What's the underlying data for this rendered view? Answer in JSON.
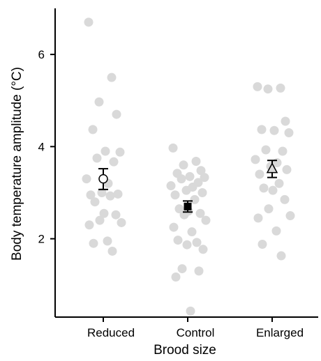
{
  "chart_data": {
    "type": "scatter",
    "xlabel": "Brood size",
    "ylabel": "Body temperature amplitude (°C)",
    "categories": [
      "Reduced",
      "Control",
      "Enlarged"
    ],
    "ylim": [
      0.3,
      7.0
    ],
    "yticks": [
      2,
      4,
      6
    ],
    "grid": false,
    "raw_points": [
      {
        "category": "Reduced",
        "color": "#d9d9d9",
        "values": [
          6.7,
          5.5,
          4.97,
          4.7,
          4.37,
          3.9,
          3.88,
          3.75,
          3.67,
          3.3,
          3.2,
          3.0,
          2.97,
          2.95,
          2.93,
          2.8,
          2.55,
          2.52,
          2.4,
          2.35,
          2.3,
          1.95,
          1.9,
          1.73
        ]
      },
      {
        "category": "Control",
        "color": "#d9d9d9",
        "values": [
          3.97,
          3.68,
          3.6,
          3.48,
          3.42,
          3.35,
          3.33,
          3.3,
          3.22,
          3.15,
          3.12,
          3.05,
          3.0,
          2.95,
          2.85,
          2.65,
          2.6,
          2.55,
          2.52,
          2.4,
          2.25,
          2.15,
          1.97,
          1.92,
          1.87,
          1.77,
          1.35,
          1.3,
          1.17,
          0.43
        ]
      },
      {
        "category": "Enlarged",
        "color": "#d9d9d9",
        "values": [
          5.3,
          5.27,
          5.25,
          4.55,
          4.37,
          4.35,
          4.3,
          3.93,
          3.9,
          3.72,
          3.65,
          3.57,
          3.5,
          3.4,
          3.2,
          3.1,
          3.05,
          2.85,
          2.65,
          2.5,
          2.45,
          2.17,
          1.88,
          1.63
        ]
      }
    ],
    "summary": [
      {
        "category": "Reduced",
        "mean": 3.3,
        "lower": 3.07,
        "upper": 3.52,
        "marker": "open-circle"
      },
      {
        "category": "Control",
        "mean": 2.7,
        "lower": 2.58,
        "upper": 2.82,
        "marker": "filled-square"
      },
      {
        "category": "Enlarged",
        "mean": 3.52,
        "lower": 3.33,
        "upper": 3.7,
        "marker": "open-triangle"
      }
    ]
  }
}
